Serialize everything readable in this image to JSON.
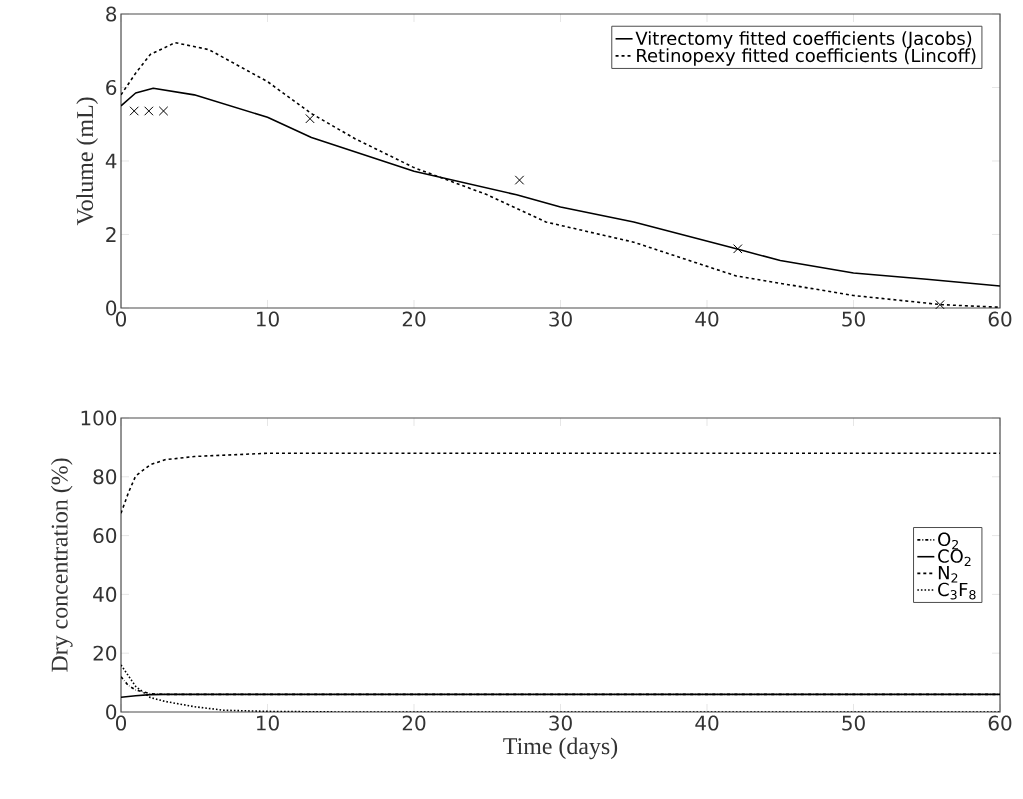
{
  "chart_data": [
    {
      "type": "line",
      "ylabel": "Volume (mL)",
      "xlim": [
        0,
        60
      ],
      "ylim": [
        0,
        8
      ],
      "xticks": [
        0,
        10,
        20,
        30,
        40,
        50,
        60
      ],
      "yticks": [
        0,
        2,
        4,
        6,
        8
      ],
      "legend": "top right",
      "grid": false,
      "series": [
        {
          "name": "Vitrectomy fitted coefficients (Jacobs)",
          "color": "#000000",
          "line_style": "solid",
          "x": [
            0,
            1,
            2.2,
            5,
            10,
            13,
            20,
            27,
            30,
            35,
            42,
            45,
            50,
            55,
            60
          ],
          "values": [
            5.5,
            5.85,
            5.98,
            5.8,
            5.19,
            4.64,
            3.72,
            3.08,
            2.75,
            2.34,
            1.61,
            1.29,
            0.95,
            0.78,
            0.6
          ]
        },
        {
          "name": "Retinopexy fitted coefficients (Lincoff)",
          "color": "#000000",
          "line_style": "dashed",
          "x": [
            0,
            1,
            2,
            3.7,
            6,
            10,
            13,
            16,
            20,
            25,
            29,
            35,
            42,
            50,
            56,
            60
          ],
          "values": [
            5.8,
            6.39,
            6.9,
            7.22,
            7.03,
            6.16,
            5.29,
            4.6,
            3.82,
            3.08,
            2.34,
            1.79,
            0.87,
            0.34,
            0.09,
            0.02
          ]
        },
        {
          "type": "scatter",
          "color": "#000000",
          "marker": "cross",
          "x": [
            0.9,
            1.9,
            2.9,
            12.9,
            27.2,
            42.1,
            55.9
          ],
          "values": [
            5.36,
            5.36,
            5.36,
            5.15,
            3.48,
            1.61,
            0.09
          ]
        }
      ]
    },
    {
      "type": "line",
      "xlabel": "Time (days)",
      "ylabel": "Dry concentration (%)",
      "xlim": [
        0,
        60
      ],
      "ylim": [
        0,
        100
      ],
      "xticks": [
        0,
        10,
        20,
        30,
        40,
        50,
        60
      ],
      "yticks": [
        0,
        20,
        40,
        60,
        80,
        100
      ],
      "legend": "right",
      "grid": false,
      "series": [
        {
          "name": "O$_{2}$",
          "color": "#000000",
          "line_style": "dashdot",
          "x": [
            0,
            0.5,
            1,
            2,
            3,
            60
          ],
          "values": [
            12,
            9,
            7.5,
            6.2,
            6,
            6
          ]
        },
        {
          "name": "CO$_{2}$",
          "color": "#000000",
          "line_style": "solid",
          "x": [
            0,
            1,
            2,
            3,
            60
          ],
          "values": [
            5,
            5.5,
            5.9,
            6,
            6
          ]
        },
        {
          "name": "N$_{2}$",
          "color": "#000000",
          "line_style": "dashed",
          "x": [
            0,
            0.5,
            1,
            2,
            3,
            5,
            10,
            60
          ],
          "values": [
            67.6,
            74.5,
            80.3,
            84.1,
            85.8,
            86.9,
            88,
            88
          ]
        },
        {
          "name": "C$_{3}$F$_{8}$",
          "color": "#000000",
          "line_style": "dotted",
          "x": [
            0,
            1,
            2,
            3,
            5,
            7,
            10,
            15,
            60
          ],
          "values": [
            16,
            8.7,
            4.9,
            3.6,
            1.8,
            0.6,
            0.2,
            0,
            0
          ]
        }
      ]
    }
  ]
}
